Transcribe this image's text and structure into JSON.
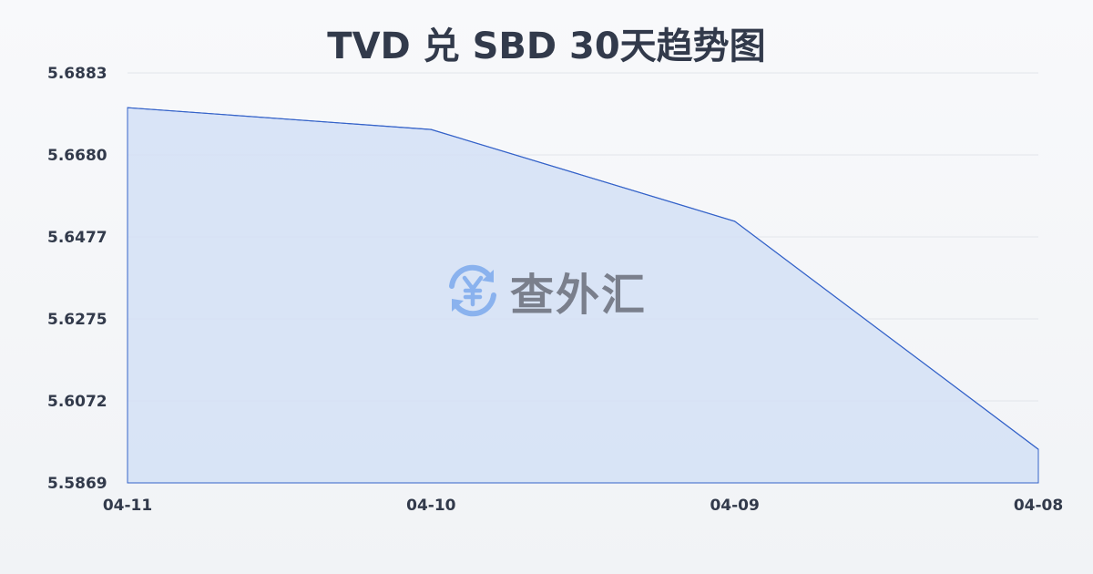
{
  "chart_data": {
    "type": "area",
    "title": "TVD 兑 SBD 30天趋势图",
    "xlabel": "",
    "ylabel": "",
    "categories": [
      "04-11",
      "04-10",
      "04-09",
      "04-08"
    ],
    "values": [
      5.6797,
      5.6743,
      5.6516,
      5.5952
    ],
    "yticks": [
      "5.6883",
      "5.6680",
      "5.6477",
      "5.6275",
      "5.6072",
      "5.5869"
    ],
    "ylim": [
      5.5869,
      5.6883
    ],
    "grid": true,
    "colors": {
      "line": "#3563c9",
      "fill": "#d4e0f6",
      "grid": "#e2e5ea",
      "text": "#323a4b"
    }
  },
  "watermark": {
    "text": "查外汇",
    "icon": "yen-exchange-icon",
    "icon_color": "#8ab2ee"
  }
}
